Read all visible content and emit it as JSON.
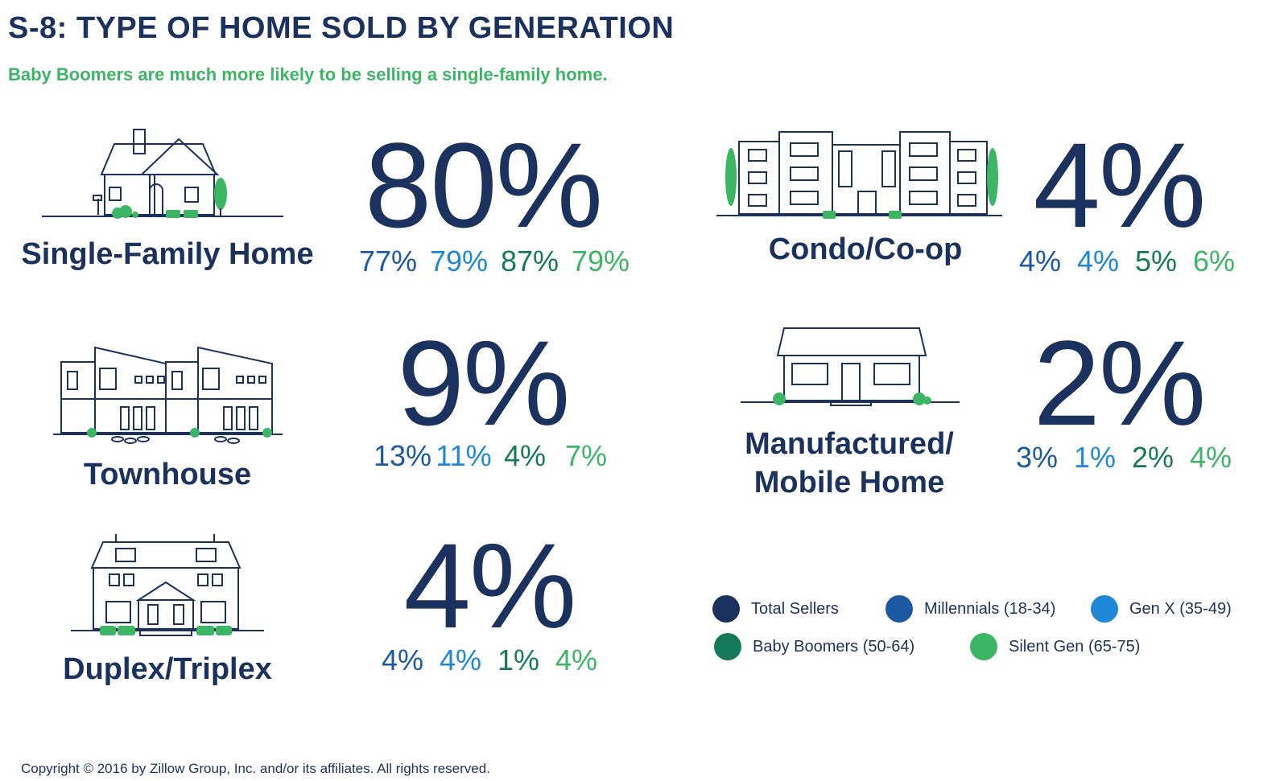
{
  "header": {
    "title": "S-8: TYPE OF HOME SOLD BY GENERATION",
    "subtitle": "Baby Boomers are much more likely to be selling a single-family home."
  },
  "colors": {
    "total": "#1b325f",
    "millennials": "#1b5aa3",
    "genx": "#1e88d6",
    "boomers": "#147a5a",
    "silent": "#3cb564"
  },
  "chart_data": {
    "type": "table",
    "title": "S-8: TYPE OF HOME SOLD BY GENERATION",
    "subtitle": "Baby Boomers are much more likely to be selling a single-family home.",
    "series_names": [
      "Total Sellers",
      "Millennials (18-34)",
      "Gen X (35-49)",
      "Baby Boomers (50-64)",
      "Silent Gen (65-75)"
    ],
    "rows": [
      {
        "category": "Single-Family Home",
        "total": "80%",
        "generations": [
          "77%",
          "79%",
          "87%",
          "79%"
        ],
        "icon": "single-family-house-icon"
      },
      {
        "category": "Condo/Co-op",
        "total": "4%",
        "generations": [
          "4%",
          "4%",
          "5%",
          "6%"
        ],
        "icon": "condo-building-icon"
      },
      {
        "category": "Townhouse",
        "total": "9%",
        "generations": [
          "13%",
          "11%",
          "4%",
          "7%"
        ],
        "icon": "townhouse-icon"
      },
      {
        "category": "Manufactured/ Mobile Home",
        "label_line1": "Manufactured/",
        "label_line2": "Mobile Home",
        "total": "2%",
        "generations": [
          "3%",
          "1%",
          "2%",
          "4%"
        ],
        "icon": "mobile-home-icon"
      },
      {
        "category": "Duplex/Triplex",
        "total": "4%",
        "generations": [
          "4%",
          "4%",
          "1%",
          "4%"
        ],
        "icon": "duplex-house-icon"
      }
    ]
  },
  "legend": [
    {
      "label": "Total Sellers",
      "color": "#1b325f"
    },
    {
      "label": "Millennials (18-34)",
      "color": "#1b5aa3"
    },
    {
      "label": "Gen X (35-49)",
      "color": "#1e88d6"
    },
    {
      "label": "Baby Boomers (50-64)",
      "color": "#147a5a"
    },
    {
      "label": "Silent Gen (65-75)",
      "color": "#3cb564"
    }
  ],
  "footer": {
    "copyright": "Copyright © 2016 by Zillow Group, Inc. and/or its affiliates. All rights reserved."
  }
}
